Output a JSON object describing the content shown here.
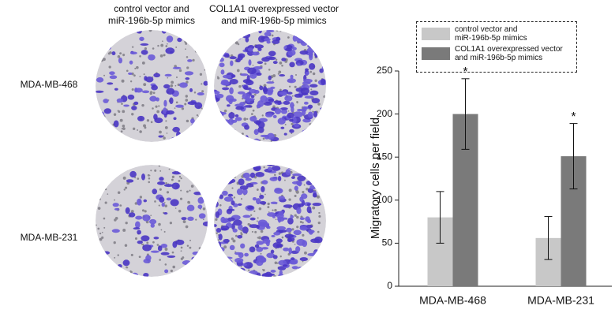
{
  "panel": {
    "columns": [
      "control vector and\nmiR-196b-5p mimics",
      "COL1A1 overexpressed vector\nand miR-196b-5p mimics"
    ],
    "rows": [
      "MDA-MB-468",
      "MDA-MB-231"
    ]
  },
  "chart_data": {
    "type": "bar",
    "y_label": "Migratory cells per field",
    "categories": [
      "MDA-MB-468",
      "MDA-MB-231"
    ],
    "series": [
      {
        "name": "control vector and\nmiR-196b-5p mimics",
        "color": "#c8c8c8",
        "values": [
          80,
          56
        ],
        "errors": [
          30,
          25
        ]
      },
      {
        "name": "COL1A1 overexpressed vector\nand miR-196b-5p mimics",
        "color": "#7a7a7a",
        "values": [
          200,
          151
        ],
        "errors": [
          41,
          38
        ],
        "significance_labels": [
          "*",
          "*"
        ]
      }
    ],
    "ylim": [
      0,
      250
    ],
    "yticks": [
      0,
      50,
      100,
      150,
      200,
      250
    ],
    "grid": false
  }
}
